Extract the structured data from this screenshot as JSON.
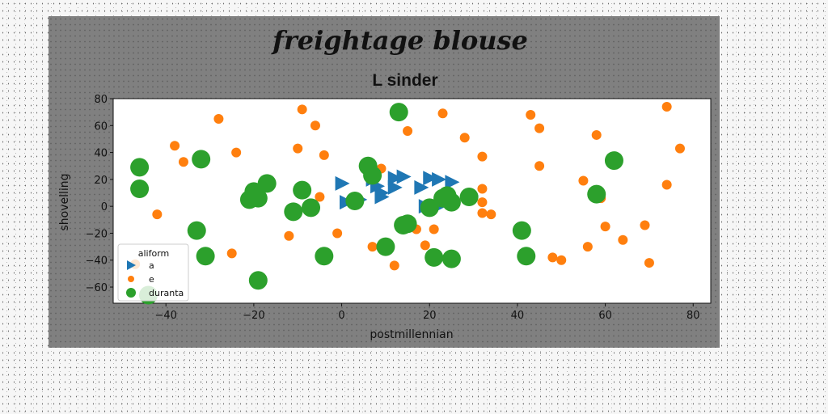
{
  "chart_data": {
    "type": "scatter",
    "suptitle": "freightage blouse",
    "title": "L sinder",
    "xlabel": "postmillennian",
    "ylabel": "shovelling",
    "xlim": [
      -52,
      84
    ],
    "ylim": [
      -72,
      80
    ],
    "xticks": [
      -40,
      -20,
      0,
      20,
      40,
      60,
      80
    ],
    "yticks": [
      -60,
      -40,
      -20,
      0,
      20,
      40,
      60,
      80
    ],
    "xtick_labels": [
      "−40",
      "−20",
      "0",
      "20",
      "40",
      "60",
      "80"
    ],
    "ytick_labels": [
      "−60",
      "−40",
      "−20",
      "0",
      "20",
      "40",
      "60",
      "80"
    ],
    "legend": {
      "title": "aliform",
      "position": "lower-left"
    },
    "series": [
      {
        "name": "a",
        "marker": "triangle-right",
        "color": "#1f77b4",
        "points": [
          [
            0,
            17
          ],
          [
            1,
            3
          ],
          [
            4,
            5
          ],
          [
            7,
            20
          ],
          [
            8,
            15
          ],
          [
            9,
            10
          ],
          [
            9,
            7
          ],
          [
            12,
            21
          ],
          [
            12,
            14
          ],
          [
            14,
            22
          ],
          [
            18,
            14
          ],
          [
            19,
            0
          ],
          [
            20,
            21
          ],
          [
            22,
            20
          ],
          [
            22,
            0
          ],
          [
            25,
            18
          ]
        ]
      },
      {
        "name": "e",
        "marker": "circle",
        "color": "#ff7f0e",
        "points": [
          [
            -47,
            -43
          ],
          [
            -42,
            -6
          ],
          [
            -38,
            45
          ],
          [
            -36,
            33
          ],
          [
            -28,
            65
          ],
          [
            -25,
            -35
          ],
          [
            -24,
            40
          ],
          [
            -12,
            -22
          ],
          [
            -10,
            43
          ],
          [
            -9,
            72
          ],
          [
            -6,
            60
          ],
          [
            -5,
            7
          ],
          [
            -4,
            38
          ],
          [
            -1,
            -20
          ],
          [
            7,
            -30
          ],
          [
            9,
            28
          ],
          [
            12,
            -44
          ],
          [
            15,
            56
          ],
          [
            17,
            -17
          ],
          [
            19,
            -29
          ],
          [
            21,
            -17
          ],
          [
            23,
            69
          ],
          [
            28,
            51
          ],
          [
            32,
            37
          ],
          [
            32,
            13
          ],
          [
            32,
            3
          ],
          [
            32,
            -5
          ],
          [
            34,
            -6
          ],
          [
            43,
            68
          ],
          [
            45,
            58
          ],
          [
            45,
            30
          ],
          [
            48,
            -38
          ],
          [
            50,
            -40
          ],
          [
            55,
            19
          ],
          [
            56,
            -30
          ],
          [
            58,
            53
          ],
          [
            59,
            6
          ],
          [
            60,
            -15
          ],
          [
            64,
            -25
          ],
          [
            69,
            -14
          ],
          [
            70,
            -42
          ],
          [
            74,
            74
          ],
          [
            74,
            16
          ],
          [
            77,
            43
          ]
        ]
      },
      {
        "name": "duranta",
        "marker": "circle-large",
        "color": "#2ca02c",
        "points": [
          [
            -46,
            29
          ],
          [
            -46,
            13
          ],
          [
            -44,
            -66
          ],
          [
            -33,
            -18
          ],
          [
            -32,
            35
          ],
          [
            -31,
            -37
          ],
          [
            -21,
            5
          ],
          [
            -20,
            11
          ],
          [
            -19,
            -55
          ],
          [
            -19,
            6
          ],
          [
            -17,
            17
          ],
          [
            -11,
            -4
          ],
          [
            -9,
            12
          ],
          [
            -7,
            -1
          ],
          [
            -4,
            -37
          ],
          [
            3,
            4
          ],
          [
            6,
            30
          ],
          [
            7,
            23
          ],
          [
            10,
            -30
          ],
          [
            13,
            70
          ],
          [
            14,
            -14
          ],
          [
            15,
            -13
          ],
          [
            20,
            -1
          ],
          [
            21,
            -38
          ],
          [
            23,
            6
          ],
          [
            24,
            8
          ],
          [
            25,
            3
          ],
          [
            25,
            -39
          ],
          [
            29,
            7
          ],
          [
            41,
            -18
          ],
          [
            42,
            -37
          ],
          [
            58,
            9
          ],
          [
            62,
            34
          ]
        ]
      }
    ]
  }
}
